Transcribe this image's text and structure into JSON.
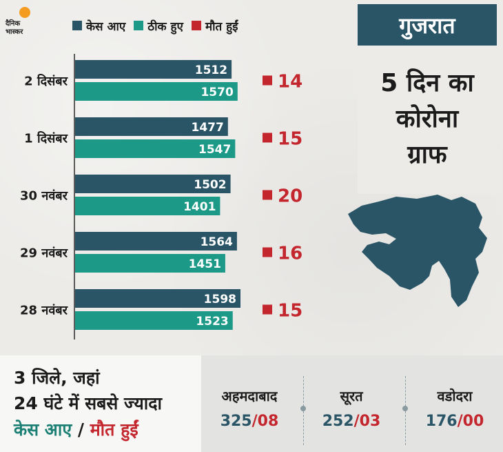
{
  "branding": {
    "logo_line1": "दैनिक",
    "logo_line2": "भास्कर"
  },
  "legend": [
    {
      "label": "केस आए",
      "color": "#2a5567"
    },
    {
      "label": "ठीक हुए",
      "color": "#1d9a87"
    },
    {
      "label": "मौत हुईं",
      "color": "#c4262e"
    }
  ],
  "side": {
    "state": "गुजरात",
    "subtitle_lines": [
      "5 दिन का",
      "कोरोना",
      "ग्राफ"
    ],
    "map_icon": "gujarat-map-icon"
  },
  "chart_data": {
    "type": "bar",
    "orientation": "horizontal",
    "categories": [
      "2 दिसंबर",
      "1 दिसंबर",
      "30 नवंबर",
      "29 नवंबर",
      "28 नवंबर"
    ],
    "series": [
      {
        "name": "केस आए",
        "values": [
          1512,
          1477,
          1502,
          1564,
          1598
        ],
        "color": "#2a5567"
      },
      {
        "name": "ठीक हुए",
        "values": [
          1570,
          1547,
          1401,
          1451,
          1523
        ],
        "color": "#1d9a87"
      },
      {
        "name": "मौत हुईं",
        "values": [
          14,
          15,
          20,
          16,
          15
        ],
        "color": "#c4262e"
      }
    ]
  },
  "bottom": {
    "heading_line1": "3 जिले, जहां",
    "heading_line2": "24 घंटे में सबसे ज्यादा",
    "heading_cases": "केस आए",
    "heading_sep": " / ",
    "heading_deaths": "मौत हुईं",
    "cities": [
      {
        "name": "अहमदाबाद",
        "cases": "325",
        "sep": "/",
        "deaths": "08"
      },
      {
        "name": "सूरत",
        "cases": "252",
        "sep": "/",
        "deaths": "03"
      },
      {
        "name": "वडोदरा",
        "cases": "176",
        "sep": "/",
        "deaths": "00"
      }
    ]
  }
}
